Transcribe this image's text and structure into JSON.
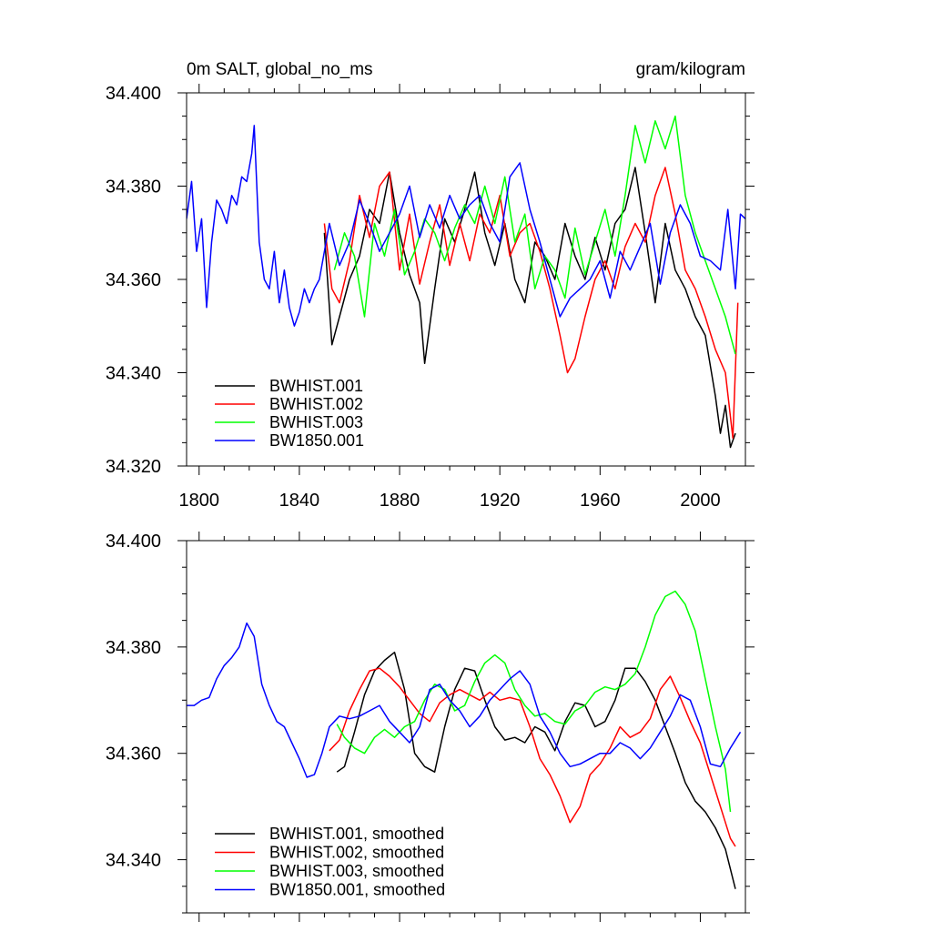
{
  "colors": {
    "BWHIST.001": "#000000",
    "BWHIST.002": "#ff0000",
    "BWHIST.003": "#00ff00",
    "BW1850.001": "#0000ff"
  },
  "chart_data": [
    {
      "type": "line",
      "title_left": "0m SALT, global_no_ms",
      "title_right": "gram/kilogram",
      "xlim": [
        1795,
        2018
      ],
      "ylim": [
        34.32,
        34.4
      ],
      "x_ticks": [
        1800,
        1840,
        1880,
        1920,
        1960,
        2000
      ],
      "x_tick_labels": [
        "1800",
        "1840",
        "1880",
        "1920",
        "1960",
        "2000"
      ],
      "y_ticks": [
        34.32,
        34.34,
        34.36,
        34.38,
        34.4
      ],
      "y_tick_labels": [
        "34.320",
        "34.340",
        "34.360",
        "34.380",
        "34.400"
      ],
      "legend_position": "bottom-left",
      "series": [
        {
          "name": "BWHIST.001",
          "color": "#000000",
          "x": [
            1850,
            1853,
            1856,
            1860,
            1864,
            1868,
            1872,
            1876,
            1880,
            1884,
            1888,
            1890,
            1894,
            1898,
            1902,
            1906,
            1910,
            1914,
            1918,
            1922,
            1926,
            1930,
            1934,
            1938,
            1942,
            1946,
            1950,
            1954,
            1958,
            1962,
            1966,
            1970,
            1974,
            1978,
            1982,
            1986,
            1990,
            1994,
            1998,
            2002,
            2006,
            2008,
            2010,
            2012,
            2014
          ],
          "y": [
            34.37,
            34.346,
            34.352,
            34.36,
            34.365,
            34.375,
            34.372,
            34.383,
            34.37,
            34.361,
            34.355,
            34.342,
            34.358,
            34.373,
            34.368,
            34.375,
            34.383,
            34.37,
            34.363,
            34.372,
            34.36,
            34.355,
            34.368,
            34.365,
            34.36,
            34.372,
            34.365,
            34.36,
            34.369,
            34.362,
            34.372,
            34.375,
            34.384,
            34.37,
            34.355,
            34.372,
            34.362,
            34.358,
            34.352,
            34.348,
            34.335,
            34.327,
            34.333,
            34.324,
            34.327
          ]
        },
        {
          "name": "BWHIST.002",
          "color": "#ff0000",
          "x": [
            1850,
            1853,
            1856,
            1860,
            1864,
            1868,
            1872,
            1876,
            1880,
            1884,
            1888,
            1892,
            1896,
            1900,
            1904,
            1908,
            1912,
            1916,
            1920,
            1924,
            1928,
            1932,
            1936,
            1940,
            1944,
            1947,
            1950,
            1954,
            1958,
            1962,
            1966,
            1970,
            1974,
            1978,
            1982,
            1986,
            1990,
            1994,
            1998,
            2002,
            2006,
            2010,
            2013,
            2015
          ],
          "y": [
            34.372,
            34.358,
            34.355,
            34.364,
            34.378,
            34.369,
            34.38,
            34.383,
            34.362,
            34.374,
            34.359,
            34.368,
            34.376,
            34.363,
            34.372,
            34.364,
            34.374,
            34.37,
            34.378,
            34.365,
            34.37,
            34.372,
            34.366,
            34.358,
            34.348,
            34.34,
            34.343,
            34.352,
            34.36,
            34.364,
            34.358,
            34.367,
            34.372,
            34.368,
            34.378,
            34.384,
            34.374,
            34.362,
            34.358,
            34.352,
            34.345,
            34.34,
            34.326,
            34.355
          ]
        },
        {
          "name": "BWHIST.003",
          "color": "#00ff00",
          "x": [
            1854,
            1858,
            1862,
            1866,
            1870,
            1874,
            1878,
            1882,
            1886,
            1890,
            1894,
            1898,
            1902,
            1906,
            1910,
            1914,
            1918,
            1922,
            1926,
            1930,
            1934,
            1938,
            1942,
            1946,
            1950,
            1954,
            1958,
            1962,
            1966,
            1970,
            1974,
            1978,
            1982,
            1986,
            1990,
            1994,
            1998,
            2002,
            2006,
            2010,
            2014
          ],
          "y": [
            34.362,
            34.37,
            34.365,
            34.352,
            34.372,
            34.365,
            34.375,
            34.361,
            34.366,
            34.373,
            34.37,
            34.364,
            34.371,
            34.376,
            34.372,
            34.38,
            34.372,
            34.382,
            34.368,
            34.374,
            34.358,
            34.365,
            34.362,
            34.356,
            34.371,
            34.361,
            34.368,
            34.375,
            34.365,
            34.378,
            34.393,
            34.385,
            34.394,
            34.388,
            34.395,
            34.378,
            34.37,
            34.364,
            34.358,
            34.352,
            34.344
          ]
        },
        {
          "name": "BW1850.001",
          "color": "#0000ff",
          "x": [
            1795,
            1797,
            1799,
            1801,
            1803,
            1805,
            1807,
            1809,
            1811,
            1813,
            1815,
            1817,
            1819,
            1821,
            1822,
            1824,
            1826,
            1828,
            1830,
            1832,
            1834,
            1836,
            1838,
            1840,
            1842,
            1844,
            1846,
            1848,
            1852,
            1856,
            1860,
            1864,
            1868,
            1872,
            1876,
            1880,
            1884,
            1888,
            1892,
            1896,
            1900,
            1904,
            1908,
            1912,
            1916,
            1920,
            1924,
            1928,
            1932,
            1936,
            1940,
            1944,
            1948,
            1952,
            1956,
            1960,
            1964,
            1968,
            1972,
            1976,
            1980,
            1984,
            1988,
            1992,
            1996,
            2000,
            2004,
            2008,
            2011,
            2014,
            2016,
            2018
          ],
          "y": [
            34.373,
            34.381,
            34.366,
            34.373,
            34.354,
            34.368,
            34.377,
            34.375,
            34.372,
            34.378,
            34.376,
            34.382,
            34.381,
            34.387,
            34.393,
            34.368,
            34.36,
            34.358,
            34.366,
            34.355,
            34.362,
            34.354,
            34.35,
            34.353,
            34.358,
            34.355,
            34.358,
            34.36,
            34.372,
            34.363,
            34.368,
            34.377,
            34.372,
            34.366,
            34.37,
            34.374,
            34.38,
            34.369,
            34.376,
            34.371,
            34.378,
            34.373,
            34.376,
            34.378,
            34.372,
            34.368,
            34.382,
            34.385,
            34.375,
            34.368,
            34.36,
            34.352,
            34.356,
            34.358,
            34.36,
            34.364,
            34.356,
            34.366,
            34.362,
            34.367,
            34.372,
            34.359,
            34.37,
            34.376,
            34.372,
            34.365,
            34.364,
            34.362,
            34.375,
            34.358,
            34.374,
            34.373
          ]
        }
      ]
    },
    {
      "type": "line",
      "xlim": [
        1795,
        2018
      ],
      "ylim": [
        34.33,
        34.4
      ],
      "x_ticks": [
        1800,
        1840,
        1880,
        1920,
        1960,
        2000
      ],
      "y_ticks": [
        34.34,
        34.36,
        34.38,
        34.4
      ],
      "y_tick_labels": [
        "34.340",
        "34.360",
        "34.380",
        "34.400"
      ],
      "legend_position": "bottom-left",
      "series": [
        {
          "name": "BWHIST.001, smoothed",
          "color": "#000000",
          "x": [
            1855,
            1858,
            1862,
            1866,
            1870,
            1874,
            1878,
            1882,
            1886,
            1890,
            1894,
            1898,
            1902,
            1906,
            1910,
            1914,
            1918,
            1922,
            1926,
            1930,
            1934,
            1938,
            1942,
            1946,
            1950,
            1954,
            1958,
            1962,
            1966,
            1970,
            1974,
            1978,
            1982,
            1986,
            1990,
            1994,
            1998,
            2002,
            2006,
            2010,
            2014
          ],
          "y": [
            34.3565,
            34.3575,
            34.364,
            34.371,
            34.3755,
            34.3775,
            34.379,
            34.372,
            34.36,
            34.3575,
            34.3565,
            34.365,
            34.372,
            34.376,
            34.3755,
            34.37,
            34.365,
            34.3625,
            34.363,
            34.362,
            34.365,
            34.364,
            34.3605,
            34.366,
            34.3695,
            34.369,
            34.365,
            34.366,
            34.37,
            34.376,
            34.376,
            34.3735,
            34.37,
            34.365,
            34.36,
            34.3545,
            34.351,
            34.349,
            34.346,
            34.342,
            34.3345
          ]
        },
        {
          "name": "BWHIST.002, smoothed",
          "color": "#ff0000",
          "x": [
            1852,
            1856,
            1860,
            1864,
            1868,
            1872,
            1876,
            1880,
            1884,
            1888,
            1892,
            1896,
            1900,
            1904,
            1908,
            1912,
            1916,
            1920,
            1924,
            1928,
            1932,
            1936,
            1940,
            1944,
            1948,
            1952,
            1956,
            1960,
            1964,
            1968,
            1972,
            1976,
            1980,
            1984,
            1988,
            1992,
            1996,
            2000,
            2004,
            2008,
            2012,
            2014
          ],
          "y": [
            34.3605,
            34.3625,
            34.368,
            34.372,
            34.3755,
            34.376,
            34.3745,
            34.3725,
            34.37,
            34.3675,
            34.366,
            34.3695,
            34.371,
            34.372,
            34.371,
            34.37,
            34.3715,
            34.37,
            34.3705,
            34.37,
            34.365,
            34.359,
            34.356,
            34.352,
            34.347,
            34.35,
            34.356,
            34.358,
            34.361,
            34.365,
            34.363,
            34.364,
            34.3665,
            34.372,
            34.3745,
            34.3705,
            34.366,
            34.362,
            34.356,
            34.35,
            34.344,
            34.3425
          ]
        },
        {
          "name": "BWHIST.003, smoothed",
          "color": "#00ff00",
          "x": [
            1855,
            1858,
            1862,
            1866,
            1870,
            1874,
            1878,
            1882,
            1886,
            1890,
            1894,
            1898,
            1902,
            1906,
            1910,
            1914,
            1918,
            1922,
            1926,
            1930,
            1934,
            1938,
            1942,
            1946,
            1950,
            1954,
            1958,
            1962,
            1966,
            1970,
            1974,
            1978,
            1982,
            1986,
            1990,
            1994,
            1998,
            2002,
            2006,
            2010,
            2012
          ],
          "y": [
            34.3655,
            34.363,
            34.361,
            34.36,
            34.363,
            34.3645,
            34.363,
            34.365,
            34.366,
            34.37,
            34.373,
            34.372,
            34.368,
            34.369,
            34.3735,
            34.377,
            34.3785,
            34.377,
            34.372,
            34.369,
            34.367,
            34.3675,
            34.366,
            34.3655,
            34.368,
            34.369,
            34.3715,
            34.3725,
            34.372,
            34.373,
            34.375,
            34.38,
            34.386,
            34.3895,
            34.3905,
            34.388,
            34.383,
            34.374,
            34.365,
            34.357,
            34.349
          ]
        },
        {
          "name": "BW1850.001, smoothed",
          "color": "#0000ff",
          "x": [
            1795,
            1798,
            1801,
            1804,
            1807,
            1810,
            1813,
            1816,
            1819,
            1822,
            1825,
            1828,
            1831,
            1834,
            1837,
            1840,
            1843,
            1846,
            1849,
            1852,
            1856,
            1860,
            1864,
            1868,
            1872,
            1876,
            1880,
            1884,
            1888,
            1892,
            1896,
            1900,
            1904,
            1908,
            1912,
            1916,
            1920,
            1924,
            1928,
            1932,
            1936,
            1940,
            1944,
            1948,
            1952,
            1956,
            1960,
            1964,
            1968,
            1972,
            1976,
            1980,
            1984,
            1988,
            1992,
            1996,
            2000,
            2004,
            2008,
            2012,
            2016
          ],
          "y": [
            34.369,
            34.369,
            34.37,
            34.3705,
            34.374,
            34.3765,
            34.378,
            34.38,
            34.3845,
            34.382,
            34.373,
            34.369,
            34.366,
            34.365,
            34.362,
            34.359,
            34.3555,
            34.356,
            34.36,
            34.365,
            34.367,
            34.3665,
            34.367,
            34.368,
            34.369,
            34.366,
            34.364,
            34.362,
            34.365,
            34.372,
            34.373,
            34.37,
            34.368,
            34.365,
            34.367,
            34.37,
            34.372,
            34.374,
            34.3755,
            34.373,
            34.367,
            34.364,
            34.36,
            34.3575,
            34.358,
            34.359,
            34.36,
            34.36,
            34.362,
            34.361,
            34.359,
            34.361,
            34.364,
            34.367,
            34.371,
            34.37,
            34.365,
            34.358,
            34.3575,
            34.361,
            34.364
          ]
        }
      ]
    }
  ]
}
